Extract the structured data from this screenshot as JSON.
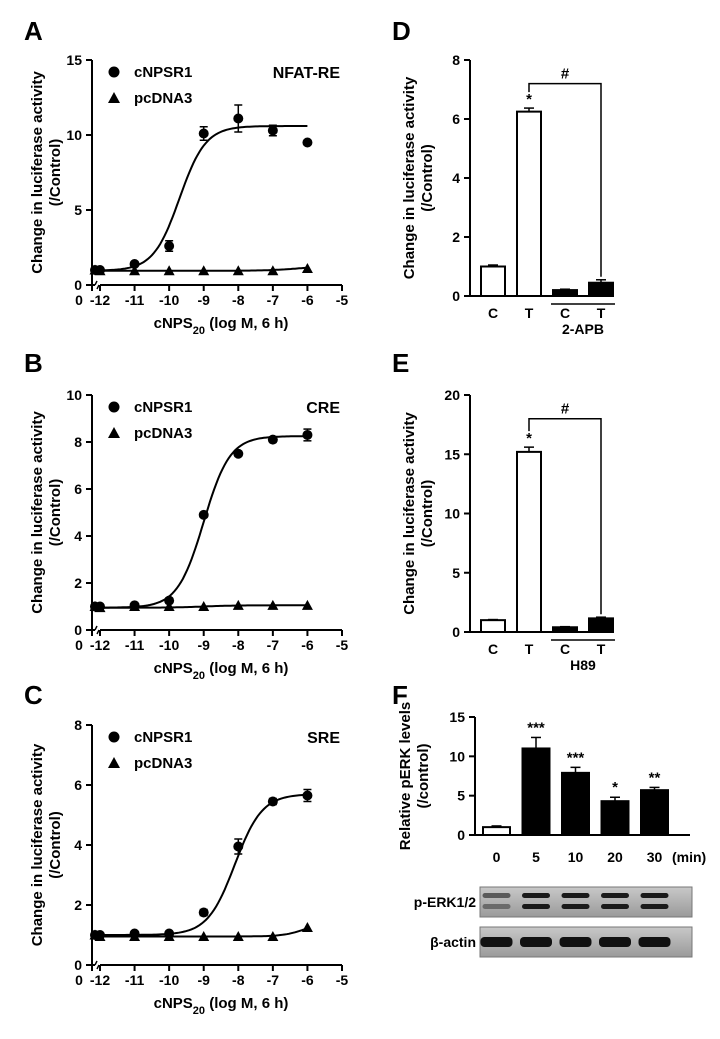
{
  "chart_data": [
    {
      "panel": "A",
      "type": "line",
      "annotation": "NFAT-RE",
      "xlabel_main": "cNPS",
      "xlabel_sub": "20",
      "xlabel_tail": " (log M, 6 h)",
      "ylabel_line1": "Change in luciferase activity",
      "ylabel_line2": "(/Control)",
      "x_tick_labels": [
        "0",
        "-12",
        "-11",
        "-10",
        "-9",
        "-8",
        "-7",
        "-6",
        "-5"
      ],
      "y_ticks": [
        0,
        5,
        10,
        15
      ],
      "ylim": [
        0,
        15
      ],
      "series": [
        {
          "name": "cNPSR1",
          "marker": "circle",
          "x": [
            -13,
            -12,
            -11,
            -10,
            -9,
            -8,
            -7,
            -6
          ],
          "y": [
            1.0,
            1.0,
            1.4,
            2.6,
            10.1,
            11.1,
            10.3,
            9.5
          ],
          "err": [
            0.1,
            0.1,
            0.15,
            0.35,
            0.45,
            0.9,
            0.35,
            0.15
          ],
          "fit": {
            "bottom": 0.95,
            "top": 10.6,
            "logec50": -9.7,
            "hill": 1.15
          }
        },
        {
          "name": "pcDNA3",
          "marker": "triangle",
          "x": [
            -13,
            -12,
            -11,
            -10,
            -9,
            -8,
            -7,
            -6
          ],
          "y": [
            1.0,
            0.95,
            0.95,
            0.95,
            0.95,
            0.95,
            0.95,
            1.1
          ],
          "err": [
            0,
            0,
            0,
            0,
            0,
            0,
            0,
            0
          ],
          "fit": {
            "bottom": 0.95,
            "top": 1.25,
            "logec50": -6.3,
            "hill": 1.0
          }
        }
      ]
    },
    {
      "panel": "B",
      "type": "line",
      "annotation": "CRE",
      "xlabel_main": "cNPS",
      "xlabel_sub": "20",
      "xlabel_tail": " (log M, 6 h)",
      "ylabel_line1": "Change in luciferase activity",
      "ylabel_line2": "(/Control)",
      "x_tick_labels": [
        "0",
        "-12",
        "-11",
        "-10",
        "-9",
        "-8",
        "-7",
        "-6",
        "-5"
      ],
      "y_ticks": [
        0,
        2,
        4,
        6,
        8,
        10
      ],
      "ylim": [
        0,
        10
      ],
      "series": [
        {
          "name": "cNPSR1",
          "marker": "circle",
          "x": [
            -13,
            -12,
            -11,
            -10,
            -9,
            -8,
            -7,
            -6
          ],
          "y": [
            1.0,
            1.0,
            1.05,
            1.25,
            4.9,
            7.5,
            8.1,
            8.3
          ],
          "err": [
            0.05,
            0.05,
            0.05,
            0.1,
            0.1,
            0.1,
            0.1,
            0.25
          ],
          "fit": {
            "bottom": 0.95,
            "top": 8.25,
            "logec50": -9.0,
            "hill": 1.15
          }
        },
        {
          "name": "pcDNA3",
          "marker": "triangle",
          "x": [
            -13,
            -12,
            -11,
            -10,
            -9,
            -8,
            -7,
            -6
          ],
          "y": [
            1.0,
            0.95,
            1.0,
            1.0,
            1.0,
            1.05,
            1.05,
            1.05
          ],
          "err": [
            0,
            0,
            0,
            0,
            0,
            0,
            0,
            0
          ],
          "fit": {
            "bottom": 0.95,
            "top": 1.05,
            "logec50": -9.0,
            "hill": 1.0
          }
        }
      ]
    },
    {
      "panel": "C",
      "type": "line",
      "annotation": "SRE",
      "xlabel_main": "cNPS",
      "xlabel_sub": "20",
      "xlabel_tail": " (log M, 6 h)",
      "ylabel_line1": "Change in luciferase activity",
      "ylabel_line2": "(/Control)",
      "x_tick_labels": [
        "0",
        "-12",
        "-11",
        "-10",
        "-9",
        "-8",
        "-7",
        "-6",
        "-5"
      ],
      "y_ticks": [
        0,
        2,
        4,
        6,
        8
      ],
      "ylim": [
        0,
        8
      ],
      "series": [
        {
          "name": "cNPSR1",
          "marker": "circle",
          "x": [
            -13,
            -12,
            -11,
            -10,
            -9,
            -8,
            -7,
            -6
          ],
          "y": [
            1.0,
            1.0,
            1.05,
            1.05,
            1.75,
            3.95,
            5.45,
            5.65
          ],
          "err": [
            0.05,
            0.05,
            0.05,
            0.05,
            0.1,
            0.25,
            0.1,
            0.2
          ],
          "fit": {
            "bottom": 1.0,
            "top": 5.7,
            "logec50": -8.1,
            "hill": 1.1
          }
        },
        {
          "name": "pcDNA3",
          "marker": "triangle",
          "x": [
            -13,
            -12,
            -11,
            -10,
            -9,
            -8,
            -7,
            -6
          ],
          "y": [
            1.0,
            0.95,
            0.95,
            0.95,
            0.95,
            0.95,
            0.95,
            1.25
          ],
          "err": [
            0,
            0,
            0,
            0,
            0,
            0,
            0,
            0
          ],
          "fit": {
            "bottom": 0.95,
            "top": 1.5,
            "logec50": -6.0,
            "hill": 1.3
          }
        }
      ]
    },
    {
      "panel": "D",
      "type": "bar",
      "ylabel_line1": "Change in luciferase activity",
      "ylabel_line2": "(/Control)",
      "categories": [
        "C",
        "T",
        "C",
        "T"
      ],
      "values": [
        1.0,
        6.25,
        0.2,
        0.45
      ],
      "errors": [
        0.05,
        0.12,
        0.03,
        0.1
      ],
      "filled": [
        false,
        false,
        true,
        true
      ],
      "group_label": "2-APB",
      "y_ticks": [
        0,
        2,
        4,
        6,
        8
      ],
      "ylim": [
        0,
        8
      ],
      "star": "*",
      "hash": "#"
    },
    {
      "panel": "E",
      "type": "bar",
      "ylabel_line1": "Change in luciferase activity",
      "ylabel_line2": "(/Control)",
      "categories": [
        "C",
        "T",
        "C",
        "T"
      ],
      "values": [
        1.0,
        15.2,
        0.4,
        1.15
      ],
      "errors": [
        0.05,
        0.4,
        0.05,
        0.1
      ],
      "filled": [
        false,
        false,
        true,
        true
      ],
      "group_label": "H89",
      "y_ticks": [
        0,
        5,
        10,
        15,
        20
      ],
      "ylim": [
        0,
        20
      ],
      "star": "*",
      "hash": "#"
    },
    {
      "panel": "F",
      "type": "bar",
      "ylabel_line1": "Relative pERK levels",
      "ylabel_line2": "(/control)",
      "categories": [
        "0",
        "5",
        "10",
        "20",
        "30"
      ],
      "unit_label": "(min)",
      "values": [
        1.0,
        11.0,
        7.9,
        4.3,
        5.7
      ],
      "errors": [
        0.15,
        1.4,
        0.7,
        0.5,
        0.35
      ],
      "filled": [
        false,
        true,
        true,
        true,
        true
      ],
      "significance": [
        "",
        "***",
        "***",
        "*",
        "**"
      ],
      "y_ticks": [
        0,
        5,
        10,
        15
      ],
      "ylim": [
        0,
        15
      ],
      "blot_labels": [
        "p-ERK1/2",
        "β-actin"
      ]
    }
  ]
}
